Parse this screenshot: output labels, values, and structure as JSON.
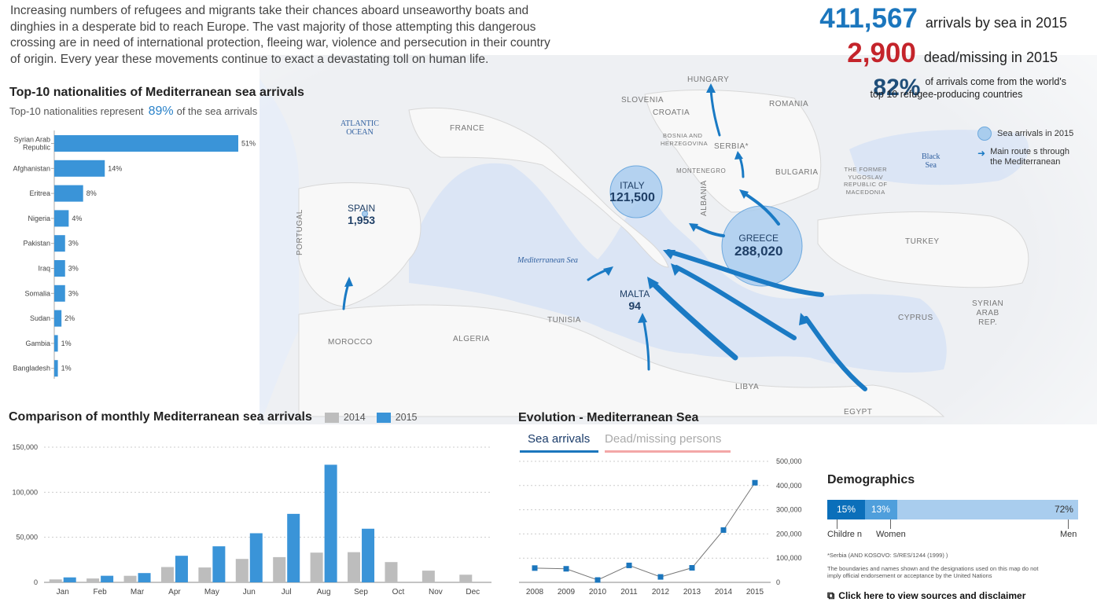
{
  "intro": "Increasing numbers of refugees and migrants take their chances aboard unseaworthy boats and dinghies in a desperate bid to reach Europe. The vast majority of those attempting this dangerous crossing are in need of international protection, fleeing war, violence and persecution in their country of origin. Every year these movements continue to exact a devastating toll on human life.",
  "stats": {
    "arrivals_value": "411,567",
    "arrivals_text": "arrivals by sea in 2015",
    "dead_value": "2,900",
    "dead_text": "dead/missing in 2015",
    "top10_value": "82%",
    "top10_text_1": "of arrivals come from the world's",
    "top10_text_2": "top 10 refugee-producing countries"
  },
  "colors": {
    "blue": "#3a94d8",
    "dark_blue": "#0b6fba",
    "gray": "#bdbdbd",
    "red": "#c4242b",
    "pink": "#f3a7a7",
    "light_blue": "#a9cdee"
  },
  "map": {
    "countries": [
      "FRANCE",
      "SLOVENIA",
      "HUNGARY",
      "ROMANIA",
      "CROATIA",
      "BOSNIA AND",
      "HERZEGOVINA",
      "SERBIA*",
      "MONTENEGRO",
      "BULGARIA",
      "ALBANIA",
      "PORTUGAL",
      "TURKEY",
      "TUNISIA",
      "ALGERIA",
      "MOROCCO",
      "LIBYA",
      "EGYPT",
      "CYPRUS",
      "SYRIAN",
      "ARAB",
      "REP.",
      "THE FORMER",
      "YUGOSLAV",
      "REPUBLIC OF",
      "MACEDONIA"
    ],
    "seas": {
      "atlantic_1": "ATLANTIC",
      "atlantic_2": "OCEAN",
      "med": "Mediterranean Sea",
      "black_1": "Black",
      "black_2": "Sea"
    },
    "arrivals": [
      {
        "name": "SPAIN",
        "value": "1,953"
      },
      {
        "name": "ITALY",
        "value": "121,500"
      },
      {
        "name": "GREECE",
        "value": "288,020"
      },
      {
        "name": "MALTA",
        "value": "94"
      }
    ],
    "legend": {
      "circle": "Sea arrivals in 2015",
      "route_1": "Main route s through",
      "route_2": "the Mediterranean"
    }
  },
  "nationalities": {
    "title": "Top-10 nationalities of Mediterranean sea arrivals",
    "sub_pre": "Top-10 nationalities represent",
    "sub_pct": "89%",
    "sub_post": "of the sea arrivals"
  },
  "monthly": {
    "title": "Comparison of monthly Mediterranean sea arrivals",
    "legend_2014": "2014",
    "legend_2015": "2015"
  },
  "evolution": {
    "title": "Evolution - Mediterranean Sea",
    "tab_active": "Sea arrivals",
    "tab_inactive": "Dead/missing persons"
  },
  "demographics": {
    "title": "Demographics",
    "children_pct": "15%",
    "women_pct": "13%",
    "men_pct": "72%",
    "children_label": "Childre n",
    "women_label": "Women",
    "men_label": "Men"
  },
  "notes": {
    "serbia": "*Serbia (AND KOSOVO: S/RES/1244 (1999)        )",
    "disclaimer_1": "The boundaries and names shown and the designations used on this map do not",
    "disclaimer_2": "imply official endorsement or acceptance by the United Nations",
    "link": "Click here to view sources and disclaimer"
  },
  "chart_data": [
    {
      "type": "bar",
      "title": "Top-10 nationalities of Mediterranean sea arrivals",
      "orientation": "horizontal",
      "categories": [
        "Syrian Arab Republic",
        "Afghanistan",
        "Eritrea",
        "Nigeria",
        "Pakistan",
        "Iraq",
        "Somalia",
        "Sudan",
        "Gambia",
        "Bangladesh"
      ],
      "values": [
        51,
        14,
        8,
        4,
        3,
        3,
        3,
        2,
        1,
        1
      ],
      "value_labels": [
        "51%",
        "14%",
        "8%",
        "4%",
        "3%",
        "3%",
        "3%",
        "2%",
        "1%",
        "1%"
      ],
      "unit": "%",
      "xlim": [
        0,
        51
      ]
    },
    {
      "type": "bar",
      "title": "Comparison of monthly Mediterranean sea arrivals",
      "categories": [
        "Jan",
        "Feb",
        "Mar",
        "Apr",
        "May",
        "Jun",
        "Jul",
        "Aug",
        "Sep",
        "Oct",
        "Nov",
        "Dec"
      ],
      "series": [
        {
          "name": "2014",
          "values": [
            3270,
            4300,
            7250,
            17000,
            16500,
            26000,
            28000,
            33000,
            33500,
            22500,
            13000,
            8500
          ]
        },
        {
          "name": "2015",
          "values": [
            5500,
            7300,
            10300,
            29500,
            40000,
            54500,
            76000,
            130500,
            59500,
            0,
            0,
            0
          ]
        }
      ],
      "ylim": [
        0,
        150000
      ],
      "yticks": [
        0,
        50000,
        100000,
        150000
      ],
      "ytick_labels": [
        "0",
        "50,000",
        "100,000",
        "150,000"
      ],
      "legend": "top",
      "grid": true
    },
    {
      "type": "line",
      "title": "Evolution - Mediterranean Sea",
      "x": [
        "2008",
        "2009",
        "2010",
        "2011",
        "2012",
        "2013",
        "2014",
        "2015"
      ],
      "series": [
        {
          "name": "Sea arrivals",
          "values": [
            59000,
            56000,
            9700,
            70000,
            22500,
            60000,
            216000,
            411567
          ]
        }
      ],
      "ylim": [
        0,
        500000
      ],
      "yticks": [
        0,
        100000,
        200000,
        300000,
        400000,
        500000
      ],
      "ytick_labels": [
        "0",
        "100,000",
        "200,000",
        "300,000",
        "400,000",
        "500,000"
      ],
      "yaxis_side": "right",
      "grid": true
    }
  ]
}
